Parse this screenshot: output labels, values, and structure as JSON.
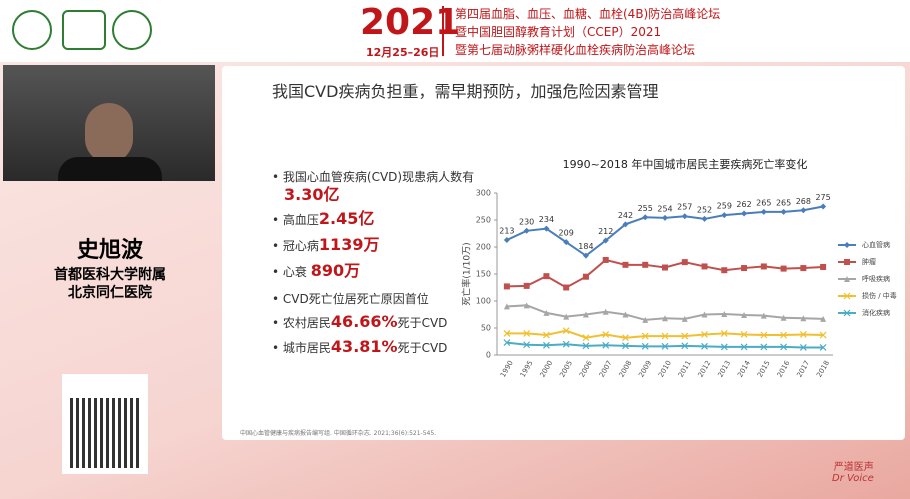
{
  "header": {
    "year": "2021",
    "dates": "12月25–26日",
    "lines": [
      "第四届血脂、血压、血糖、血栓(4B)防治高峰论坛",
      "暨中国胆固醇教育计划（CCEP）2021",
      "暨第七届动脉粥样硬化血栓疾病防治高峰论坛"
    ]
  },
  "speaker": {
    "name": "史旭波",
    "affiliation": [
      "首都医科大学附属",
      "北京同仁医院"
    ]
  },
  "slide": {
    "title": "我国CVD疾病负担重，需早期预防，加强危险因素管理",
    "bullets": [
      [
        "我国心血管疾病(CVD)现患病人数有",
        "3.30亿",
        ""
      ],
      [
        "高血压",
        "2.45亿",
        ""
      ],
      [
        "冠心病",
        "1139万",
        ""
      ],
      [
        "心衰",
        "890万",
        ""
      ]
    ],
    "heading2": "CVD死亡位居死亡原因首位",
    "bullets2": [
      [
        "农村居民",
        "46.66%",
        "死于CVD"
      ],
      [
        "城市居民",
        "43.81%",
        "死于CVD"
      ]
    ],
    "reference": "中国心血管健康与疾病报告编写组. 中国循环杂志. 2021;36(6):521-545."
  },
  "watermark": {
    "cn": "严道医声",
    "en": "Dr Voice"
  },
  "chart": {
    "type": "line",
    "title": "1990~2018 年中国城市居民主要疾病死亡率变化",
    "y_label": "死亡率(1/10万)",
    "categories": [
      "1990",
      "1995",
      "2000",
      "2005",
      "2006",
      "2007",
      "2008",
      "2009",
      "2010",
      "2011",
      "2012",
      "2013",
      "2014",
      "2015",
      "2016",
      "2017",
      "2018"
    ],
    "ylim": [
      0,
      300
    ],
    "yticks": [
      0,
      50,
      100,
      150,
      200,
      250,
      300
    ],
    "grid": false,
    "series": [
      {
        "name": "心血管病",
        "color": "#4a7ebb",
        "marker": "diamond",
        "show_labels": true,
        "values": [
          213,
          230,
          234,
          209,
          184,
          212,
          242,
          255,
          254,
          257,
          252,
          259,
          262,
          265,
          265,
          268,
          275
        ]
      },
      {
        "name": "肿瘤",
        "color": "#c0504d",
        "marker": "square",
        "values": [
          127,
          128,
          146,
          125,
          145,
          176,
          167,
          167,
          162,
          172,
          164,
          157,
          161,
          164,
          160,
          161,
          163
        ]
      },
      {
        "name": "呼吸疾病",
        "color": "#a6a6a6",
        "marker": "triangle",
        "values": [
          90,
          92,
          78,
          71,
          75,
          80,
          75,
          65,
          68,
          67,
          75,
          76,
          74,
          73,
          69,
          68,
          67
        ]
      },
      {
        "name": "损伤 / 中毒",
        "color": "#f0c030",
        "marker": "x",
        "values": [
          40,
          40,
          37,
          45,
          32,
          38,
          32,
          35,
          35,
          35,
          38,
          40,
          38,
          37,
          37,
          38,
          37
        ]
      },
      {
        "name": "消化疾病",
        "color": "#4bacc6",
        "marker": "x",
        "values": [
          23,
          19,
          18,
          20,
          17,
          18,
          17,
          16,
          16,
          17,
          16,
          15,
          15,
          15,
          15,
          14,
          14
        ]
      }
    ]
  }
}
